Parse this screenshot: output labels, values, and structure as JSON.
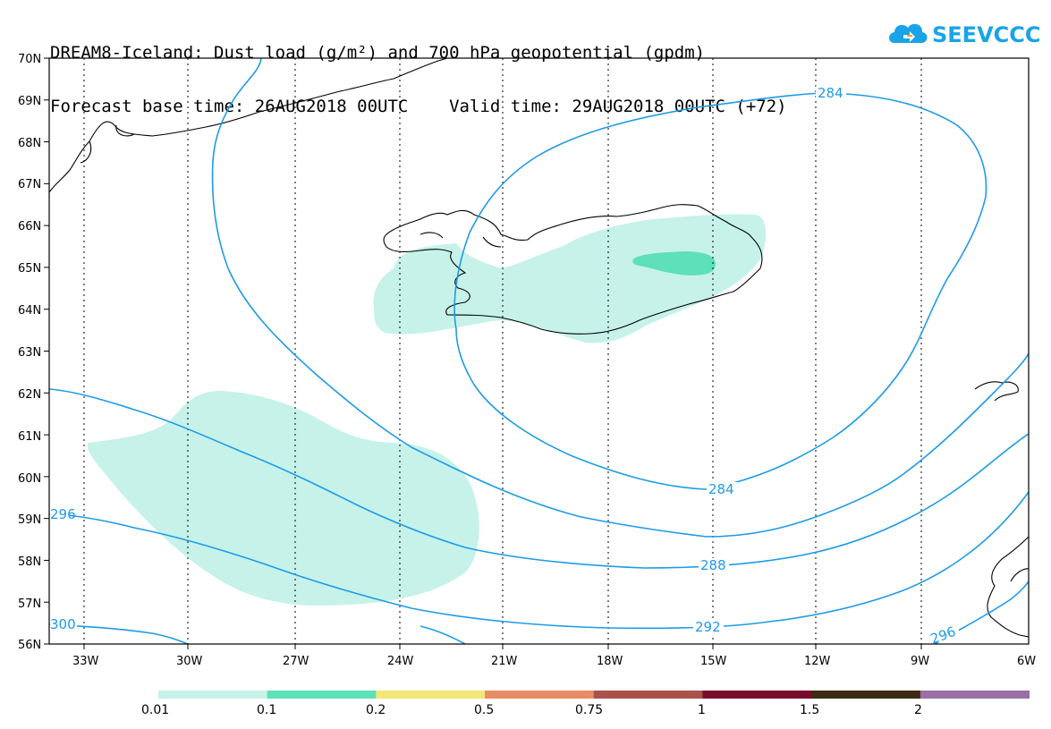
{
  "title": {
    "line1": "DREAM8-Iceland: Dust load (g/m²) and 700 hPa geopotential (gpdm)",
    "line2": "Forecast base time: 26AUG2018 00UTC    Valid time: 29AUG2018 00UTC (+72)"
  },
  "logo": {
    "text": "SEEVCCC",
    "icon": "cloud-icon",
    "color": "#1aa3e8"
  },
  "map": {
    "lat_labels": [
      "70N",
      "69N",
      "68N",
      "67N",
      "66N",
      "65N",
      "64N",
      "63N",
      "62N",
      "61N",
      "60N",
      "59N",
      "58N",
      "57N",
      "56N"
    ],
    "lon_labels": [
      "33W",
      "30W",
      "27W",
      "24W",
      "21W",
      "18W",
      "15W",
      "12W",
      "9W",
      "6W"
    ],
    "contour_color": "#1e9be6",
    "contour_labels": [
      "284",
      "284",
      "288",
      "292",
      "296",
      "296",
      "300"
    ]
  },
  "legend": {
    "colors": [
      "#c6f2ea",
      "#5ee0b8",
      "#f5e67a",
      "#e88c64",
      "#a9524a",
      "#7a0a2c",
      "#3d2a14",
      "#9a6fa6"
    ],
    "labels": [
      "0.01",
      "0.1",
      "0.2",
      "0.5",
      "0.75",
      "1",
      "1.5",
      "2"
    ]
  },
  "dust_colors": {
    "light": "#c6f2ea",
    "medium": "#5ee0b8"
  }
}
